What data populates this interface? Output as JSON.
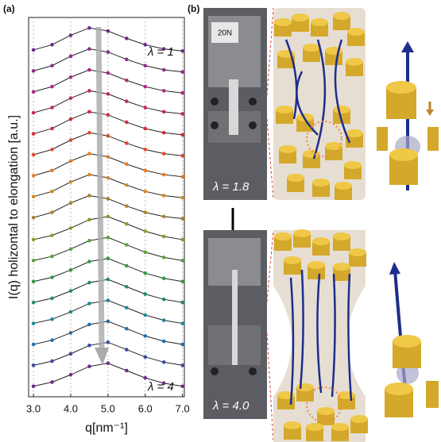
{
  "chart_data": {
    "type": "line",
    "panel_label": "(a)",
    "y_label": "I(q) holizontal to elongation [a.u.]",
    "x_label": "q[nm⁻¹]",
    "annotations": [
      "λ = 1",
      "λ = 4"
    ],
    "x": [
      3.0,
      3.5,
      4.0,
      4.5,
      5.0,
      5.5,
      6.0,
      6.5,
      7.0
    ],
    "xlim": [
      2.87,
      7.05
    ],
    "ylim": [
      -0.8,
      35.4
    ],
    "xticks": [
      {
        "value": 3.0,
        "label": "3.0"
      },
      {
        "value": 4.0,
        "label": "4.0"
      },
      {
        "value": 5.0,
        "label": "5.0"
      },
      {
        "value": 6.0,
        "label": "6.0"
      },
      {
        "value": 7.0,
        "label": "7.0"
      }
    ],
    "grid": true,
    "fit_color": "#222",
    "series": [
      {
        "color": "#6a2c91",
        "values": [
          32.3,
          32.8,
          33.7,
          34.4,
          34.1,
          33.4,
          32.8,
          32.4,
          32.2
        ]
      },
      {
        "color": "#8e2c8e",
        "values": [
          30.3,
          30.8,
          31.7,
          32.4,
          32.1,
          31.4,
          30.8,
          30.4,
          30.2
        ]
      },
      {
        "color": "#b0287f",
        "values": [
          28.3,
          28.8,
          29.7,
          30.4,
          30.1,
          29.4,
          28.8,
          28.4,
          28.2
        ]
      },
      {
        "color": "#c8246a",
        "values": [
          26.3,
          26.8,
          27.7,
          28.4,
          28.1,
          27.4,
          26.8,
          26.4,
          26.2
        ]
      },
      {
        "color": "#d8283e",
        "values": [
          24.3,
          24.8,
          25.7,
          26.4,
          26.1,
          25.4,
          24.8,
          24.4,
          24.2
        ]
      },
      {
        "color": "#e4482a",
        "values": [
          22.3,
          22.8,
          23.7,
          24.4,
          24.1,
          23.4,
          22.8,
          22.4,
          22.2
        ]
      },
      {
        "color": "#ee7a1a",
        "values": [
          20.3,
          20.8,
          21.7,
          22.4,
          22.1,
          21.4,
          20.8,
          20.4,
          20.2
        ]
      },
      {
        "color": "#d98a1c",
        "values": [
          18.3,
          18.8,
          19.7,
          20.4,
          20.1,
          19.4,
          18.8,
          18.4,
          18.2
        ]
      },
      {
        "color": "#a8862a",
        "values": [
          16.3,
          16.8,
          17.7,
          18.4,
          18.1,
          17.4,
          16.8,
          16.4,
          16.2
        ]
      },
      {
        "color": "#8e9a26",
        "values": [
          14.2,
          14.6,
          15.3,
          16.1,
          16.4,
          15.7,
          15.0,
          14.5,
          14.2
        ]
      },
      {
        "color": "#5aa638",
        "values": [
          12.2,
          12.6,
          13.3,
          14.1,
          14.4,
          13.7,
          13.0,
          12.5,
          12.2
        ]
      },
      {
        "color": "#2f9a4c",
        "values": [
          10.2,
          10.6,
          11.3,
          12.1,
          12.4,
          11.7,
          11.0,
          10.5,
          10.2
        ]
      },
      {
        "color": "#1f8e74",
        "values": [
          8.2,
          8.6,
          9.3,
          10.1,
          10.4,
          9.7,
          9.0,
          8.5,
          8.2
        ]
      },
      {
        "color": "#1d8a96",
        "values": [
          6.2,
          6.6,
          7.3,
          8.1,
          8.4,
          7.7,
          7.0,
          6.5,
          6.2
        ]
      },
      {
        "color": "#2270b0",
        "values": [
          4.2,
          4.6,
          5.3,
          6.1,
          6.4,
          5.7,
          5.0,
          4.5,
          4.2
        ]
      },
      {
        "color": "#3c4aa6",
        "values": [
          2.2,
          2.6,
          3.3,
          4.1,
          4.4,
          3.7,
          3.0,
          2.5,
          2.2
        ]
      },
      {
        "color": "#6a2c91",
        "values": [
          0.2,
          0.6,
          1.3,
          2.1,
          2.4,
          1.7,
          1.0,
          0.5,
          0.2
        ]
      }
    ]
  },
  "panel_b": {
    "label": "(b)",
    "sign": "20N",
    "top_strain": "λ = 1.8",
    "bottom_strain": "λ = 4.0"
  }
}
